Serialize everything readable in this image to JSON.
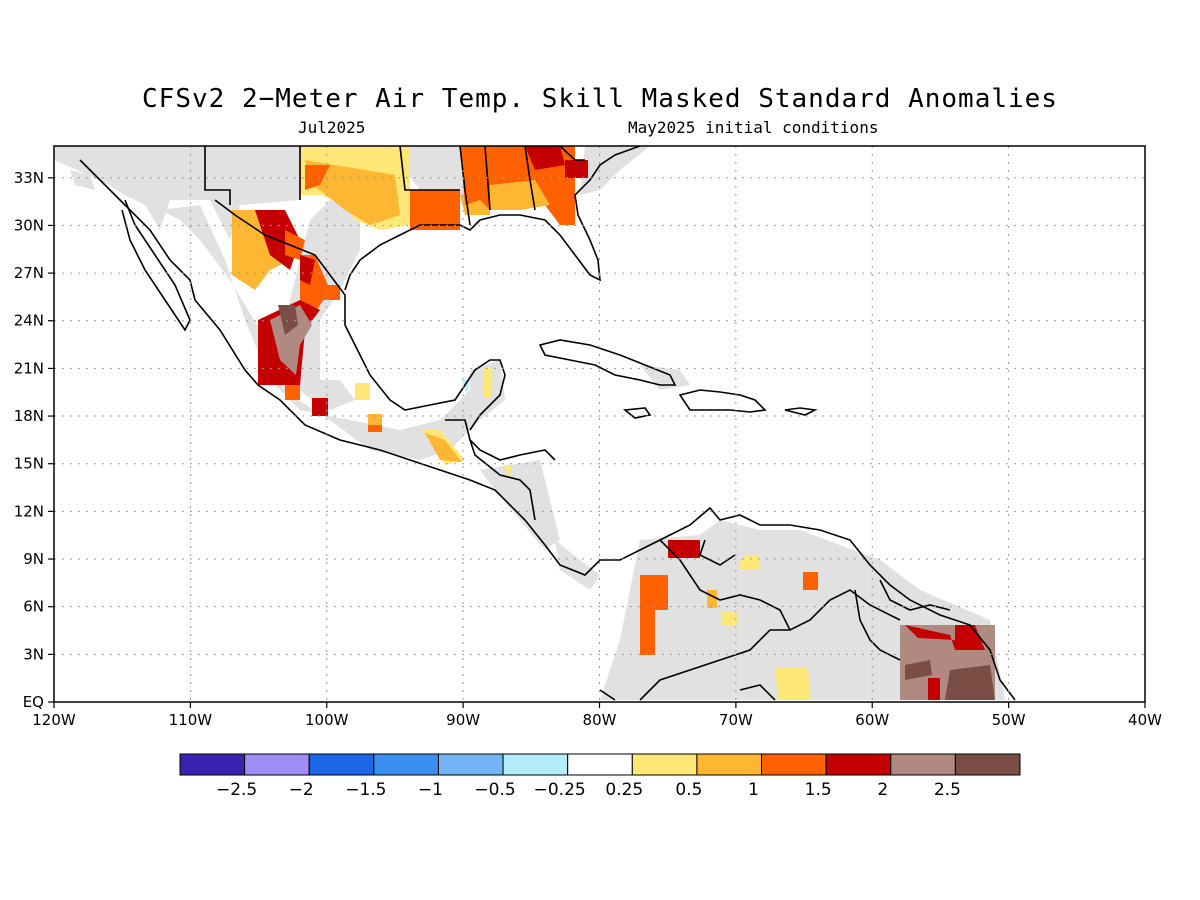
{
  "title": "CFSv2 2−Meter Air Temp. Skill Masked Standard Anomalies",
  "valid_month": "Jul2025",
  "init_label": "May2025 initial conditions",
  "map": {
    "lon_range": [
      -120,
      -40
    ],
    "lat_range": [
      0,
      35
    ],
    "lon_ticks": [
      {
        "v": -120,
        "label": "120W"
      },
      {
        "v": -110,
        "label": "110W"
      },
      {
        "v": -100,
        "label": "100W"
      },
      {
        "v": -90,
        "label": "90W"
      },
      {
        "v": -80,
        "label": "80W"
      },
      {
        "v": -70,
        "label": "70W"
      },
      {
        "v": -60,
        "label": "60W"
      },
      {
        "v": -50,
        "label": "50W"
      },
      {
        "v": -40,
        "label": "40W"
      }
    ],
    "lat_ticks": [
      {
        "v": 0,
        "label": "EQ"
      },
      {
        "v": 3,
        "label": "3N"
      },
      {
        "v": 6,
        "label": "6N"
      },
      {
        "v": 9,
        "label": "9N"
      },
      {
        "v": 12,
        "label": "12N"
      },
      {
        "v": 15,
        "label": "15N"
      },
      {
        "v": 18,
        "label": "18N"
      },
      {
        "v": 21,
        "label": "21N"
      },
      {
        "v": 24,
        "label": "24N"
      },
      {
        "v": 27,
        "label": "27N"
      },
      {
        "v": 30,
        "label": "30N"
      },
      {
        "v": 33,
        "label": "33N"
      }
    ],
    "grid": true,
    "mask_color": "#e1e1e1"
  },
  "colorbar": {
    "colors": [
      "#3a22b0",
      "#9f8df5",
      "#1e66e8",
      "#3a8ff0",
      "#73b4f5",
      "#b4ecfa",
      "#ffffff",
      "#ffe877",
      "#ffb633",
      "#ff6000",
      "#c40000",
      "#b08a80",
      "#7a4e44"
    ],
    "labels": [
      "−2.5",
      "−2",
      "−1.5",
      "−1",
      "−0.5",
      "−0.25",
      "0.25",
      "0.5",
      "1",
      "1.5",
      "2",
      "2.5"
    ]
  }
}
